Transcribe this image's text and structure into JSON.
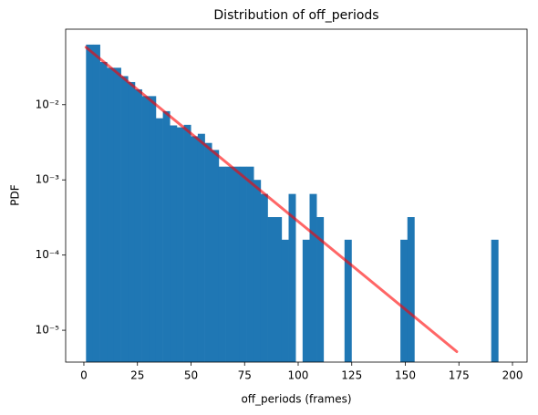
{
  "chart_data": {
    "type": "histogram",
    "title": "Distribution of off_periods",
    "xlabel": "off_periods (frames)",
    "ylabel": "PDF",
    "bins": [
      1,
      4.26,
      7.52,
      10.78,
      14.04,
      17.3,
      20.56,
      23.82,
      27.08,
      30.34,
      33.6,
      36.86,
      40.12,
      43.38,
      46.64,
      49.9,
      53.16,
      56.42,
      59.68,
      62.94,
      66.2,
      69.46,
      72.72,
      75.98,
      79.24,
      82.5,
      85.76,
      89.02,
      92.28,
      95.54,
      98.8,
      102.06,
      105.32,
      108.58,
      111.84,
      115.1,
      118.36,
      121.62,
      124.88,
      128.14,
      131.4,
      134.66,
      137.92,
      141.18,
      144.44,
      147.7,
      150.96,
      154.22,
      157.48,
      160.74,
      164.0,
      167.26,
      170.52,
      173.78,
      177.04,
      180.3,
      183.56,
      186.82,
      190.08,
      193.34,
      196.6
    ],
    "values": [
      0.063,
      0.063,
      0.037,
      0.031,
      0.031,
      0.024,
      0.02,
      0.016,
      0.013,
      0.013,
      0.0066,
      0.0082,
      0.0053,
      0.005,
      0.0054,
      0.0038,
      0.0041,
      0.0031,
      0.0025,
      0.0015,
      0.0015,
      0.0015,
      0.0015,
      0.0015,
      0.001,
      0.00065,
      0.00032,
      0.00032,
      0.00016,
      0.00065,
      0,
      0.00016,
      0.00065,
      0.00032,
      0,
      0,
      0,
      0.00016,
      0,
      0,
      0,
      0,
      0,
      0,
      0,
      0.00016,
      0.00032,
      0,
      0,
      0,
      0,
      0,
      0,
      0,
      0,
      0,
      0,
      0,
      0.00016,
      0
    ],
    "color": "#1f77b4",
    "fit": {
      "x": [
        1,
        174
      ],
      "values": [
        0.058,
        5.2e-06
      ],
      "color": "#ff0000",
      "alpha": 0.6
    },
    "xlim": [
      -8.5,
      206.8
    ],
    "xticks": [
      0,
      25,
      50,
      75,
      100,
      125,
      150,
      175,
      200
    ],
    "ylim": [
      3.77e-06,
      0.101
    ],
    "yscale": "log",
    "yticks": [
      {
        "value": 1e-05,
        "label": "10⁻⁵"
      },
      {
        "value": 0.0001,
        "label": "10⁻⁴"
      },
      {
        "value": 0.001,
        "label": "10⁻³"
      },
      {
        "value": 0.01,
        "label": "10⁻²"
      }
    ]
  }
}
